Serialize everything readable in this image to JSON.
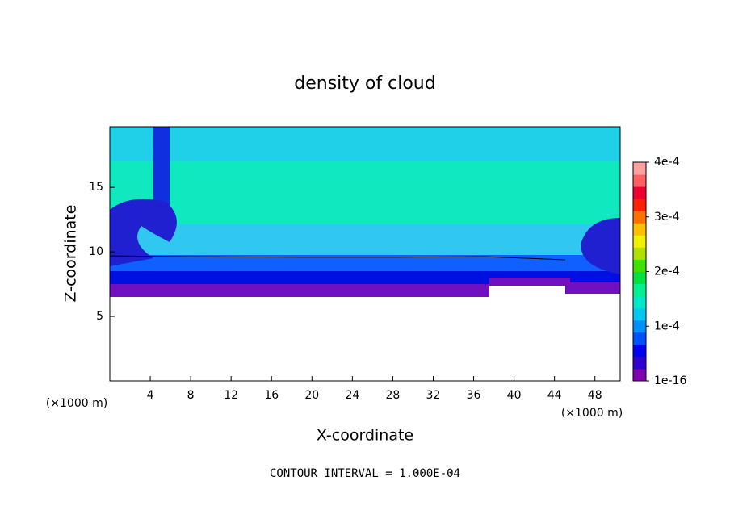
{
  "chart_data": {
    "type": "contour",
    "title": "density of cloud",
    "x_label": "X-coordinate",
    "y_label": "Z-coordinate",
    "y_unit": "(×1000 m)",
    "x_unit": "(×1000 m)",
    "xlim": [
      0,
      50.5
    ],
    "ylim": [
      0,
      19.7
    ],
    "xticks": [
      4,
      8,
      12,
      16,
      20,
      24,
      28,
      32,
      36,
      40,
      44,
      48
    ],
    "yticks": [
      5,
      10,
      15
    ],
    "colorbar": {
      "lim": [
        0,
        0.0004
      ],
      "ticks": [
        {
          "value": 1e-16,
          "label": "1e-16"
        },
        {
          "value": 0.0001,
          "label": "1e-4"
        },
        {
          "value": 0.0002,
          "label": "2e-4"
        },
        {
          "value": 0.0003,
          "label": "3e-4"
        },
        {
          "value": 0.0004,
          "label": "4e-4"
        }
      ],
      "colors": [
        "#8000b0",
        "#3000d0",
        "#0000f0",
        "#0050ff",
        "#0090ff",
        "#00c8f0",
        "#00e8c8",
        "#00f090",
        "#00e040",
        "#40e000",
        "#b0e000",
        "#f0f000",
        "#ffc000",
        "#ff7000",
        "#ff2000",
        "#f00030",
        "#ff6060",
        "#ffa0a0"
      ]
    },
    "annotation": "CONTOUR INTERVAL = 1.000E-04"
  }
}
